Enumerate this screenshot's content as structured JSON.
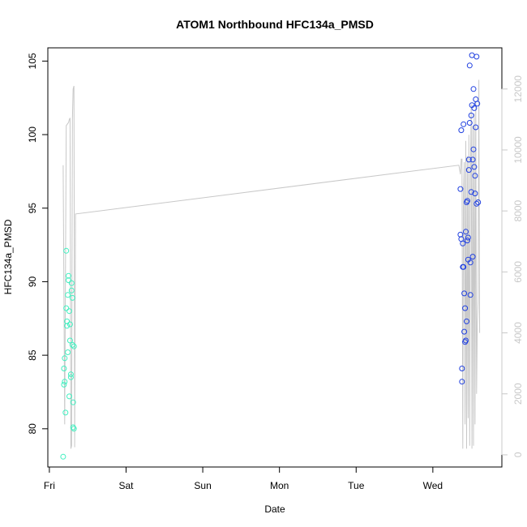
{
  "chart_data": {
    "type": "scatter",
    "title": "ATOM1 Northbound HFC134a_PMSD",
    "xlabel": "Date",
    "ylabel": "HFC134a_PMSD",
    "x_ticks": [
      "Fri",
      "Sat",
      "Sun",
      "Mon",
      "Tue",
      "Wed"
    ],
    "xlim": [
      -0.02,
      5.9
    ],
    "ylim": [
      77.4,
      105.9
    ],
    "y_ticks": [
      80,
      85,
      90,
      95,
      100,
      105
    ],
    "y2_ticks": [
      0,
      2000,
      4000,
      6000,
      8000,
      10000,
      12000
    ],
    "y2lim": [
      -400,
      13350
    ],
    "grid": false,
    "series": [
      {
        "color": "#40f0c0",
        "marker": "circle-open",
        "points": [
          [
            0.18,
            78.1
          ],
          [
            0.19,
            83.0
          ],
          [
            0.19,
            84.1
          ],
          [
            0.2,
            84.8
          ],
          [
            0.2,
            83.2
          ],
          [
            0.21,
            81.1
          ],
          [
            0.22,
            88.2
          ],
          [
            0.22,
            92.1
          ],
          [
            0.23,
            87.3
          ],
          [
            0.23,
            87.0
          ],
          [
            0.24,
            89.1
          ],
          [
            0.24,
            85.2
          ],
          [
            0.25,
            90.4
          ],
          [
            0.25,
            90.1
          ],
          [
            0.26,
            88.0
          ],
          [
            0.26,
            82.2
          ],
          [
            0.27,
            87.1
          ],
          [
            0.27,
            86.0
          ],
          [
            0.28,
            83.5
          ],
          [
            0.28,
            83.7
          ],
          [
            0.29,
            89.9
          ],
          [
            0.29,
            89.4
          ],
          [
            0.3,
            88.9
          ],
          [
            0.3,
            85.7
          ],
          [
            0.31,
            80.1
          ],
          [
            0.31,
            81.8
          ],
          [
            0.32,
            85.6
          ],
          [
            0.32,
            80.0
          ]
        ]
      },
      {
        "color": "#2040e0",
        "marker": "circle-open",
        "points": [
          [
            5.36,
            96.3
          ],
          [
            5.36,
            93.2
          ],
          [
            5.37,
            92.9
          ],
          [
            5.37,
            100.3
          ],
          [
            5.38,
            84.1
          ],
          [
            5.38,
            83.2
          ],
          [
            5.39,
            92.6
          ],
          [
            5.39,
            91.0
          ],
          [
            5.4,
            100.7
          ],
          [
            5.4,
            91.0
          ],
          [
            5.41,
            86.6
          ],
          [
            5.41,
            89.2
          ],
          [
            5.42,
            85.9
          ],
          [
            5.42,
            88.2
          ],
          [
            5.43,
            93.4
          ],
          [
            5.43,
            86.0
          ],
          [
            5.44,
            95.4
          ],
          [
            5.44,
            87.3
          ],
          [
            5.45,
            95.5
          ],
          [
            5.45,
            92.8
          ],
          [
            5.46,
            93.0
          ],
          [
            5.46,
            91.5
          ],
          [
            5.47,
            98.3
          ],
          [
            5.47,
            97.6
          ],
          [
            5.48,
            104.7
          ],
          [
            5.48,
            100.8
          ],
          [
            5.49,
            91.3
          ],
          [
            5.49,
            89.1
          ],
          [
            5.5,
            96.1
          ],
          [
            5.5,
            101.3
          ],
          [
            5.51,
            105.4
          ],
          [
            5.51,
            102.0
          ],
          [
            5.52,
            98.3
          ],
          [
            5.52,
            91.7
          ],
          [
            5.53,
            103.1
          ],
          [
            5.53,
            99.0
          ],
          [
            5.54,
            101.8
          ],
          [
            5.54,
            97.8
          ],
          [
            5.55,
            96.0
          ],
          [
            5.55,
            97.2
          ],
          [
            5.56,
            102.4
          ],
          [
            5.56,
            100.5
          ],
          [
            5.57,
            95.3
          ],
          [
            5.57,
            105.3
          ],
          [
            5.58,
            102.1
          ],
          [
            5.59,
            95.4
          ]
        ]
      }
    ],
    "line_series": {
      "color": "#c8c8c8",
      "axis": "right",
      "points": [
        [
          0.18,
          9500
        ],
        [
          0.2,
          1000
        ],
        [
          0.22,
          10800
        ],
        [
          0.25,
          10900
        ],
        [
          0.26,
          11000
        ],
        [
          0.27,
          11050
        ],
        [
          0.28,
          200
        ],
        [
          0.29,
          300
        ],
        [
          0.3,
          11000
        ],
        [
          0.31,
          12000
        ],
        [
          0.32,
          12100
        ],
        [
          0.33,
          250
        ],
        [
          0.34,
          7900
        ],
        [
          5.34,
          9500
        ],
        [
          5.36,
          9200
        ],
        [
          5.37,
          9700
        ],
        [
          5.38,
          9700
        ],
        [
          5.39,
          200
        ],
        [
          5.4,
          8500
        ],
        [
          5.41,
          9600
        ],
        [
          5.42,
          1000
        ],
        [
          5.43,
          10300
        ],
        [
          5.44,
          200
        ],
        [
          5.45,
          9800
        ],
        [
          5.46,
          1200
        ],
        [
          5.47,
          10500
        ],
        [
          5.48,
          300
        ],
        [
          5.49,
          9000
        ],
        [
          5.5,
          11500
        ],
        [
          5.51,
          200
        ],
        [
          5.52,
          10800
        ],
        [
          5.53,
          300
        ],
        [
          5.54,
          11200
        ],
        [
          5.55,
          1000
        ],
        [
          5.56,
          11600
        ],
        [
          5.57,
          2000
        ],
        [
          5.58,
          4300
        ],
        [
          5.59,
          5000
        ],
        [
          5.6,
          12300
        ],
        [
          5.61,
          4000
        ]
      ]
    }
  }
}
